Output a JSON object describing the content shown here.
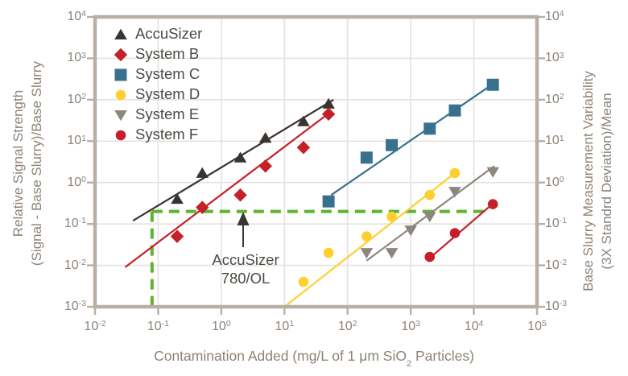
{
  "figure": {
    "x_axis_title_pre": "Contamination Added (mg/L of 1 μm SiO",
    "x_axis_title_sub": "2",
    "x_axis_title_post": " Particles)",
    "left_axis_title_line1": "Relative Signal Strength",
    "left_axis_title_line2": "(Signal - Base Slurry)/Base Slurry",
    "right_axis_title_line1": "Base Slurry Measurement Variability",
    "right_axis_title_line2": "(3X Standrd Deviation)/Mean",
    "annotation_line1": "AccuSizer",
    "annotation_line2": "780/OL"
  },
  "colors": {
    "background": "#ffffff",
    "axis_frame": "#b8afa6",
    "gridline": "#e4e2e0",
    "tick_text": "#8d8379",
    "dark_text": "#4e4944",
    "arrow": "#3a3633",
    "reference_green": "#5cb431"
  },
  "chart_data": {
    "type": "scatter",
    "x_scale": "log",
    "y_scale": "log",
    "xlim": [
      0.01,
      100000
    ],
    "ylim": [
      0.001,
      10000
    ],
    "grid": true,
    "legend_position": "top-left-inside",
    "x_tick_exponents": [
      -2,
      -1,
      0,
      1,
      2,
      3,
      4,
      5
    ],
    "y_tick_exponents": [
      4,
      3,
      2,
      1,
      0,
      -1,
      -2,
      -3
    ],
    "xlabel": "Contamination Added (mg/L of 1 μm SiO₂ Particles)",
    "ylabel_left": "Relative Signal Strength (Signal - Base Slurry)/Base Slurry",
    "ylabel_right": "Base Slurry Measurement Variability (3X Standrd Deviation)/Mean",
    "series": [
      {
        "name": "AccuSizer",
        "marker": "triangle-up",
        "color": "#3a3431",
        "points": [
          [
            0.2,
            0.4
          ],
          [
            0.5,
            1.7
          ],
          [
            2,
            4
          ],
          [
            5,
            12
          ],
          [
            20,
            30
          ],
          [
            50,
            80
          ]
        ],
        "trend": [
          [
            0.04,
            0.12
          ],
          [
            60,
            100
          ]
        ]
      },
      {
        "name": "System B",
        "marker": "diamond",
        "color": "#c32127",
        "points": [
          [
            0.2,
            0.05
          ],
          [
            0.5,
            0.25
          ],
          [
            2,
            0.5
          ],
          [
            5,
            2.5
          ],
          [
            20,
            7
          ],
          [
            50,
            45
          ]
        ],
        "trend": [
          [
            0.03,
            0.009
          ],
          [
            55,
            52
          ]
        ]
      },
      {
        "name": "System C",
        "marker": "square",
        "color": "#38718e",
        "points": [
          [
            50,
            0.35
          ],
          [
            200,
            4
          ],
          [
            500,
            8
          ],
          [
            2000,
            20
          ],
          [
            5000,
            55
          ],
          [
            20000,
            230
          ]
        ],
        "trend": [
          [
            55,
            0.5
          ],
          [
            20000,
            240
          ]
        ]
      },
      {
        "name": "System D",
        "marker": "circle",
        "color": "#fdd02f",
        "points": [
          [
            20,
            0.004
          ],
          [
            50,
            0.02
          ],
          [
            200,
            0.05
          ],
          [
            500,
            0.15
          ],
          [
            2000,
            0.5
          ],
          [
            5000,
            1.7
          ]
        ],
        "trend": [
          [
            10,
            0.001
          ],
          [
            5500,
            1.9
          ]
        ]
      },
      {
        "name": "System E",
        "marker": "triangle-down",
        "color": "#8d867f",
        "points": [
          [
            200,
            0.02
          ],
          [
            500,
            0.02
          ],
          [
            1000,
            0.07
          ],
          [
            2000,
            0.15
          ],
          [
            5000,
            0.6
          ],
          [
            20000,
            1.8
          ]
        ],
        "trend": [
          [
            200,
            0.013
          ],
          [
            21000,
            2.5
          ]
        ]
      },
      {
        "name": "System F",
        "marker": "circle",
        "color": "#c5202a",
        "points": [
          [
            2000,
            0.016
          ],
          [
            5000,
            0.06
          ],
          [
            20000,
            0.3
          ]
        ],
        "trend": [
          [
            1900,
            0.014
          ],
          [
            21000,
            0.33
          ]
        ]
      }
    ],
    "reference_line": {
      "style": "dashed",
      "color": "#5cb431",
      "horizontal_y": 0.2,
      "horizontal_x_range": [
        0.08,
        18000
      ],
      "vertical_x": 0.08,
      "vertical_y_range": [
        0.001,
        0.2
      ],
      "annotation": "AccuSizer 780/OL"
    }
  }
}
